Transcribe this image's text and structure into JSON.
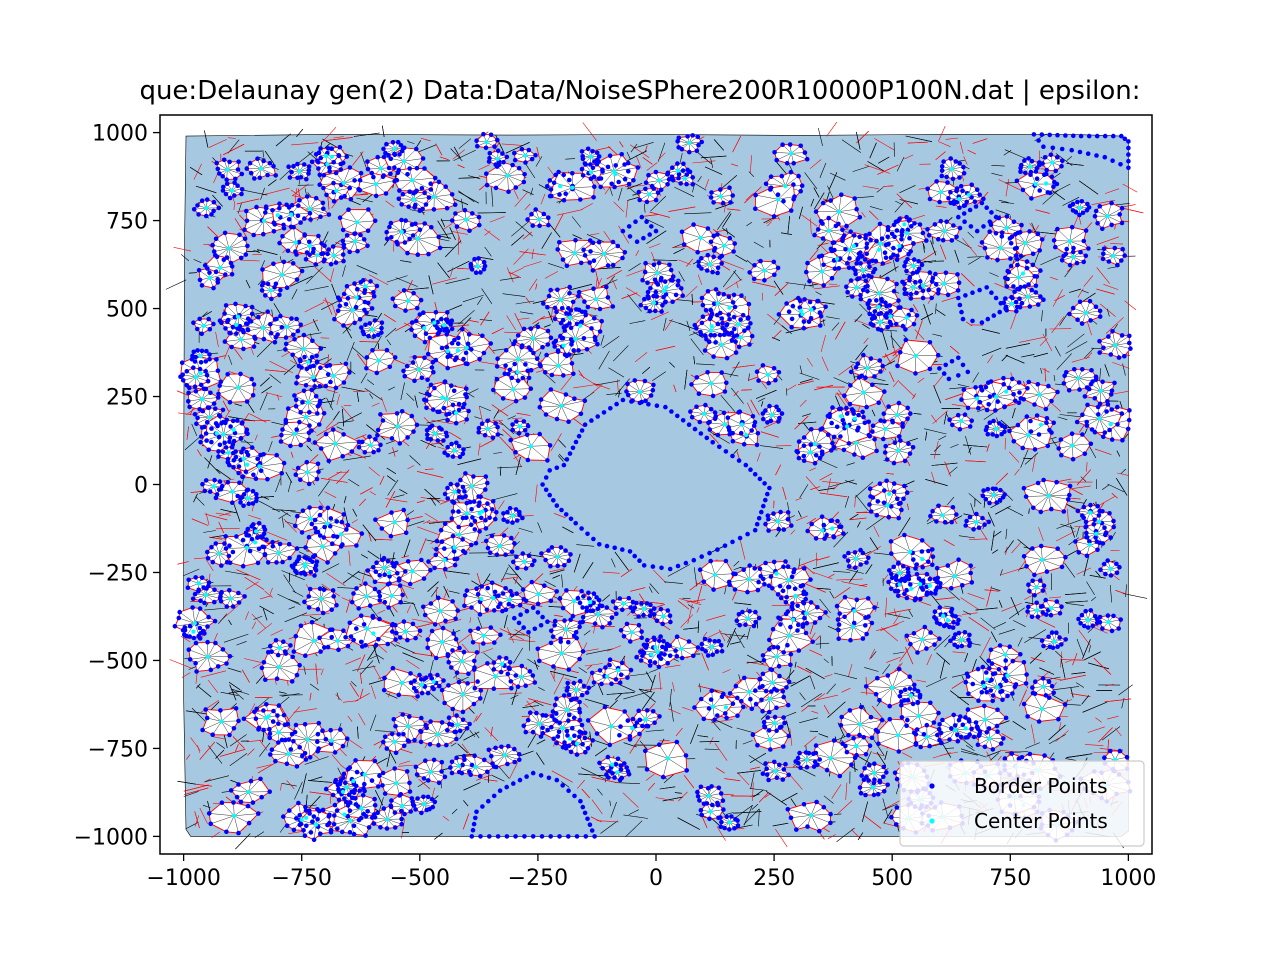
{
  "chart_data": {
    "type": "scatter",
    "title": "que:Delaunay  gen(2) Data:Data/NoiseSPhere200R10000P100N.dat | epsilon:",
    "xlabel": "",
    "ylabel": "",
    "xlim": [
      -1050,
      1050
    ],
    "ylim": [
      -1050,
      1050
    ],
    "xticks": [
      -1000,
      -750,
      -500,
      -250,
      0,
      250,
      500,
      750,
      1000
    ],
    "yticks": [
      -1000,
      -750,
      -500,
      -250,
      0,
      250,
      500,
      750,
      1000
    ],
    "xtick_labels": [
      "−1000",
      "−750",
      "−500",
      "−250",
      "0",
      "250",
      "500",
      "750",
      "1000"
    ],
    "ytick_labels": [
      "−1000",
      "−750",
      "−500",
      "−250",
      "0",
      "250",
      "500",
      "750",
      "1000"
    ],
    "grid": false,
    "legend_position": "lower-right",
    "series": [
      {
        "name": "Border Points",
        "color": "#0000ff",
        "marker": "dot"
      },
      {
        "name": "Center Points",
        "color": "#00ffff",
        "marker": "dot"
      }
    ],
    "colors": {
      "region_fill": "#a6c8e0",
      "border_edges": "#ff0000",
      "inner_edges": "#000000",
      "cluster_fill": "#ffffff"
    },
    "region_outline": [
      [
        -995,
        990
      ],
      [
        -700,
        995
      ],
      [
        -300,
        993
      ],
      [
        0,
        995
      ],
      [
        300,
        992
      ],
      [
        600,
        995
      ],
      [
        900,
        994
      ],
      [
        985,
        990
      ],
      [
        1000,
        975
      ],
      [
        1000,
        -985
      ],
      [
        985,
        -1000
      ],
      [
        -985,
        -1000
      ],
      [
        -995,
        -980
      ],
      [
        -1000,
        -600
      ],
      [
        -1000,
        0
      ],
      [
        -998,
        700
      ]
    ],
    "holes": [
      {
        "name": "central-void",
        "polygon": [
          [
            -195,
            55
          ],
          [
            -150,
            170
          ],
          [
            -70,
            240
          ],
          [
            20,
            220
          ],
          [
            120,
            120
          ],
          [
            190,
            55
          ],
          [
            240,
            -10
          ],
          [
            210,
            -130
          ],
          [
            130,
            -185
          ],
          [
            80,
            -215
          ],
          [
            30,
            -240
          ],
          [
            -25,
            -230
          ],
          [
            -55,
            -190
          ],
          [
            -120,
            -170
          ],
          [
            -170,
            -110
          ],
          [
            -210,
            -60
          ],
          [
            -240,
            0
          ],
          [
            -225,
            40
          ]
        ]
      },
      {
        "name": "bottom-left-gap",
        "polygon": [
          [
            -390,
            -1000
          ],
          [
            -380,
            -930
          ],
          [
            -330,
            -870
          ],
          [
            -260,
            -820
          ],
          [
            -210,
            -840
          ],
          [
            -160,
            -900
          ],
          [
            -130,
            -1000
          ]
        ]
      },
      {
        "name": "top-right-gap",
        "polygon": [
          [
            800,
            995
          ],
          [
            900,
            990
          ],
          [
            985,
            990
          ],
          [
            1000,
            975
          ],
          [
            1000,
            900
          ],
          [
            950,
            930
          ],
          [
            880,
            950
          ],
          [
            820,
            960
          ]
        ]
      },
      {
        "name": "right-gap-a",
        "polygon": [
          [
            640,
            530
          ],
          [
            700,
            560
          ],
          [
            740,
            500
          ],
          [
            690,
            460
          ],
          [
            650,
            470
          ]
        ]
      },
      {
        "name": "right-gap-b",
        "polygon": [
          [
            640,
            760
          ],
          [
            690,
            800
          ],
          [
            720,
            760
          ],
          [
            680,
            720
          ]
        ]
      },
      {
        "name": "small-gap-a",
        "polygon": [
          [
            -70,
            720
          ],
          [
            -30,
            760
          ],
          [
            0,
            720
          ],
          [
            -40,
            690
          ]
        ]
      },
      {
        "name": "small-gap-b",
        "polygon": [
          [
            600,
            330
          ],
          [
            640,
            360
          ],
          [
            660,
            320
          ],
          [
            620,
            300
          ]
        ]
      },
      {
        "name": "small-gap-c",
        "polygon": [
          [
            -300,
            -380
          ],
          [
            -260,
            -350
          ],
          [
            -230,
            -390
          ],
          [
            -270,
            -420
          ]
        ]
      }
    ]
  }
}
